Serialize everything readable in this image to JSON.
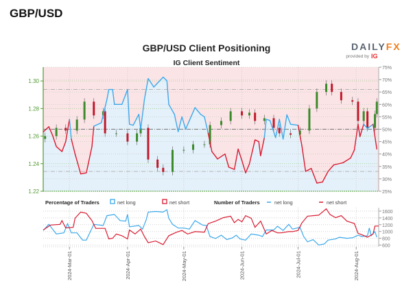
{
  "page_title": "GBP/USD",
  "logo": {
    "brand_a": "DAILY",
    "brand_b": "FX",
    "tagline": "provided by",
    "tagline_brand": "IG"
  },
  "chart_data": {
    "type": "candlestick+line",
    "title": "GBP/USD Client Positioning",
    "subtitle": "IG Client Sentiment",
    "x_range": [
      "2024-02-16",
      "2024-08-13"
    ],
    "x_ticks": [
      "2024-Mar-01",
      "2024-Apr-01",
      "2024-May-01",
      "2024-Jun-01",
      "2024-Jul-01",
      "2024-Aug-01"
    ],
    "x_tick_dates": [
      "2024-03-01",
      "2024-04-01",
      "2024-05-01",
      "2024-06-01",
      "2024-07-01",
      "2024-08-01"
    ],
    "price_axis": {
      "range": [
        1.22,
        1.31
      ],
      "ticks": [
        "1.22",
        "1.24",
        "1.26",
        "1.28",
        "1.30"
      ],
      "color": "#4e9a2e"
    },
    "percent_axis": {
      "range": [
        25,
        75
      ],
      "ticks": [
        "25%",
        "30%",
        "35%",
        "40%",
        "45%",
        "50%",
        "55%",
        "60%",
        "65%",
        "70%",
        "75%"
      ]
    },
    "reference_lines_percent": [
      33,
      50,
      66
    ],
    "price_close": [
      [
        "2024-02-17",
        1.26
      ],
      [
        "2024-02-23",
        1.266
      ],
      [
        "2024-02-28",
        1.264
      ],
      [
        "2024-03-05",
        1.272
      ],
      [
        "2024-03-09",
        1.285
      ],
      [
        "2024-03-14",
        1.275
      ],
      [
        "2024-03-19",
        1.278
      ],
      [
        "2024-03-20",
        1.262
      ],
      [
        "2024-03-26",
        1.262
      ],
      [
        "2024-04-01",
        1.256
      ],
      [
        "2024-04-06",
        1.262
      ],
      [
        "2024-04-08",
        1.266
      ],
      [
        "2024-04-12",
        1.243
      ],
      [
        "2024-04-17",
        1.237
      ],
      [
        "2024-04-20",
        1.234
      ],
      [
        "2024-04-25",
        1.25
      ],
      [
        "2024-05-01",
        1.25
      ],
      [
        "2024-05-06",
        1.254
      ],
      [
        "2024-05-12",
        1.254
      ],
      [
        "2024-05-15",
        1.268
      ],
      [
        "2024-05-21",
        1.271
      ],
      [
        "2024-05-26",
        1.278
      ],
      [
        "2024-06-01",
        1.275
      ],
      [
        "2024-06-05",
        1.277
      ],
      [
        "2024-06-08",
        1.271
      ],
      [
        "2024-06-13",
        1.273
      ],
      [
        "2024-06-18",
        1.266
      ],
      [
        "2024-06-21",
        1.262
      ],
      [
        "2024-06-27",
        1.261
      ],
      [
        "2024-07-02",
        1.264
      ],
      [
        "2024-07-07",
        1.28
      ],
      [
        "2024-07-11",
        1.292
      ],
      [
        "2024-07-16",
        1.298
      ],
      [
        "2024-07-19",
        1.292
      ],
      [
        "2024-07-24",
        1.286
      ],
      [
        "2024-07-30",
        1.285
      ],
      [
        "2024-08-02",
        1.271
      ],
      [
        "2024-08-05",
        1.278
      ],
      [
        "2024-08-07",
        1.266
      ],
      [
        "2024-08-11",
        1.276
      ],
      [
        "2024-08-12",
        1.285
      ]
    ],
    "net_long_percent": [
      [
        "2024-02-16",
        48.9
      ],
      [
        "2024-02-19",
        51
      ],
      [
        "2024-02-21",
        47.5
      ],
      [
        "2024-02-23",
        43
      ],
      [
        "2024-02-26",
        41
      ],
      [
        "2024-02-28",
        45
      ],
      [
        "2024-03-01",
        54
      ],
      [
        "2024-03-02",
        46
      ],
      [
        "2024-03-04",
        40
      ],
      [
        "2024-03-07",
        32
      ],
      [
        "2024-03-10",
        32.4
      ],
      [
        "2024-03-13",
        43
      ],
      [
        "2024-03-14",
        51.2
      ],
      [
        "2024-03-18",
        52.6
      ],
      [
        "2024-03-21",
        62
      ],
      [
        "2024-03-22",
        66
      ],
      [
        "2024-03-24",
        66
      ],
      [
        "2024-03-25",
        60
      ],
      [
        "2024-03-29",
        60
      ],
      [
        "2024-04-01",
        66
      ],
      [
        "2024-04-02",
        52
      ],
      [
        "2024-04-04",
        51.6
      ],
      [
        "2024-04-07",
        56
      ],
      [
        "2024-04-08",
        50
      ],
      [
        "2024-04-10",
        62
      ],
      [
        "2024-04-12",
        70.4
      ],
      [
        "2024-04-15",
        67
      ],
      [
        "2024-04-20",
        71
      ],
      [
        "2024-04-22",
        69.5
      ],
      [
        "2024-04-23",
        60
      ],
      [
        "2024-04-26",
        56
      ],
      [
        "2024-04-28",
        49
      ],
      [
        "2024-04-30",
        55
      ],
      [
        "2024-05-02",
        50
      ],
      [
        "2024-05-04",
        53.5
      ],
      [
        "2024-05-07",
        58.7
      ],
      [
        "2024-05-10",
        56
      ],
      [
        "2024-05-12",
        55
      ],
      [
        "2024-05-14",
        48.4
      ],
      [
        "2024-05-16",
        41
      ],
      [
        "2024-05-19",
        38
      ],
      [
        "2024-05-23",
        40
      ],
      [
        "2024-05-25",
        34.7
      ],
      [
        "2024-05-28",
        33.8
      ],
      [
        "2024-05-30",
        42
      ],
      [
        "2024-06-01",
        37.4
      ],
      [
        "2024-06-03",
        32.4
      ],
      [
        "2024-06-05",
        36
      ],
      [
        "2024-06-08",
        45.7
      ],
      [
        "2024-06-10",
        45
      ],
      [
        "2024-06-11",
        39.3
      ],
      [
        "2024-06-13",
        46.6
      ],
      [
        "2024-06-14",
        54
      ],
      [
        "2024-06-16",
        53.5
      ],
      [
        "2024-06-19",
        46.6
      ],
      [
        "2024-06-21",
        54
      ],
      [
        "2024-06-23",
        46
      ],
      [
        "2024-06-25",
        55.8
      ],
      [
        "2024-06-27",
        52
      ],
      [
        "2024-07-01",
        51.6
      ],
      [
        "2024-07-03",
        43.4
      ],
      [
        "2024-07-05",
        33
      ],
      [
        "2024-07-08",
        34.2
      ],
      [
        "2024-07-11",
        28.3
      ],
      [
        "2024-07-14",
        28.7
      ],
      [
        "2024-07-17",
        33
      ],
      [
        "2024-07-20",
        35.6
      ],
      [
        "2024-07-25",
        36.5
      ],
      [
        "2024-07-29",
        38.4
      ],
      [
        "2024-07-31",
        41.6
      ],
      [
        "2024-08-02",
        52
      ],
      [
        "2024-08-03",
        47
      ],
      [
        "2024-08-05",
        52
      ],
      [
        "2024-08-07",
        50.3
      ],
      [
        "2024-08-10",
        52
      ],
      [
        "2024-08-12",
        42
      ]
    ],
    "traders_panel": {
      "legend": {
        "pct_title": "Percentage of Traders",
        "pct_long": "net long",
        "pct_short": "net short",
        "num_title": "Number of Traders",
        "num_long": "net long",
        "num_short": "net short"
      },
      "y_range": [
        550,
        1700
      ],
      "y_ticks": [
        "600",
        "800",
        "1000",
        "1200",
        "1400",
        "1600"
      ],
      "series": [
        {
          "name": "net long",
          "color": "#3aa8ec",
          "values": [
            [
              "2024-02-16",
              1030
            ],
            [
              "2024-02-19",
              1210
            ],
            [
              "2024-02-23",
              925
            ],
            [
              "2024-02-27",
              960
            ],
            [
              "2024-02-29",
              1230
            ],
            [
              "2024-03-02",
              960
            ],
            [
              "2024-03-05",
              960
            ],
            [
              "2024-03-08",
              745
            ],
            [
              "2024-03-10",
              745
            ],
            [
              "2024-03-14",
              1210
            ],
            [
              "2024-03-19",
              1175
            ],
            [
              "2024-03-21",
              1465
            ],
            [
              "2024-03-25",
              1500
            ],
            [
              "2024-03-28",
              1320
            ],
            [
              "2024-03-31",
              1305
            ],
            [
              "2024-04-01",
              1500
            ],
            [
              "2024-04-02",
              1140
            ],
            [
              "2024-04-07",
              1175
            ],
            [
              "2024-04-09",
              1070
            ],
            [
              "2024-04-11",
              1355
            ],
            [
              "2024-04-12",
              1570
            ],
            [
              "2024-04-16",
              1590
            ],
            [
              "2024-04-20",
              1570
            ],
            [
              "2024-04-22",
              1640
            ],
            [
              "2024-04-23",
              1390
            ],
            [
              "2024-04-25",
              1210
            ],
            [
              "2024-04-28",
              1100
            ],
            [
              "2024-05-01",
              1100
            ],
            [
              "2024-05-04",
              1070
            ],
            [
              "2024-05-07",
              1320
            ],
            [
              "2024-05-11",
              1190
            ],
            [
              "2024-05-13",
              1175
            ],
            [
              "2024-05-15",
              850
            ],
            [
              "2024-05-18",
              795
            ],
            [
              "2024-05-21",
              890
            ],
            [
              "2024-05-24",
              760
            ],
            [
              "2024-05-27",
              815
            ],
            [
              "2024-05-29",
              890
            ],
            [
              "2024-05-31",
              780
            ],
            [
              "2024-06-03",
              745
            ],
            [
              "2024-06-06",
              925
            ],
            [
              "2024-06-10",
              890
            ],
            [
              "2024-06-12",
              850
            ],
            [
              "2024-06-14",
              1045
            ],
            [
              "2024-06-18",
              1045
            ],
            [
              "2024-06-20",
              1155
            ],
            [
              "2024-06-23",
              1030
            ],
            [
              "2024-06-26",
              1210
            ],
            [
              "2024-06-28",
              1070
            ],
            [
              "2024-07-02",
              1120
            ],
            [
              "2024-07-04",
              850
            ],
            [
              "2024-07-06",
              695
            ],
            [
              "2024-07-09",
              760
            ],
            [
              "2024-07-12",
              600
            ],
            [
              "2024-07-15",
              635
            ],
            [
              "2024-07-17",
              745
            ],
            [
              "2024-07-21",
              780
            ],
            [
              "2024-07-23",
              830
            ],
            [
              "2024-07-27",
              800
            ],
            [
              "2024-07-30",
              815
            ],
            [
              "2024-08-02",
              890
            ],
            [
              "2024-08-04",
              850
            ],
            [
              "2024-08-07",
              875
            ],
            [
              "2024-08-08",
              1100
            ],
            [
              "2024-08-09",
              875
            ],
            [
              "2024-08-11",
              995
            ],
            [
              "2024-08-12",
              830
            ]
          ]
        },
        {
          "name": "net short",
          "color": "#d9182e",
          "values": [
            [
              "2024-02-16",
              1045
            ],
            [
              "2024-02-20",
              1190
            ],
            [
              "2024-02-25",
              1210
            ],
            [
              "2024-02-26",
              1320
            ],
            [
              "2024-02-28",
              1105
            ],
            [
              "2024-03-03",
              1120
            ],
            [
              "2024-03-04",
              1390
            ],
            [
              "2024-03-07",
              1570
            ],
            [
              "2024-03-10",
              1535
            ],
            [
              "2024-03-13",
              1320
            ],
            [
              "2024-03-15",
              1090
            ],
            [
              "2024-03-20",
              1090
            ],
            [
              "2024-03-22",
              780
            ],
            [
              "2024-03-24",
              800
            ],
            [
              "2024-03-26",
              925
            ],
            [
              "2024-03-29",
              875
            ],
            [
              "2024-04-01",
              780
            ],
            [
              "2024-04-02",
              1045
            ],
            [
              "2024-04-05",
              925
            ],
            [
              "2024-04-08",
              1070
            ],
            [
              "2024-04-10",
              850
            ],
            [
              "2024-04-12",
              670
            ],
            [
              "2024-04-16",
              720
            ],
            [
              "2024-04-20",
              615
            ],
            [
              "2024-04-23",
              875
            ],
            [
              "2024-04-25",
              925
            ],
            [
              "2024-04-27",
              975
            ],
            [
              "2024-04-30",
              1030
            ],
            [
              "2024-05-03",
              925
            ],
            [
              "2024-05-07",
              995
            ],
            [
              "2024-05-12",
              980
            ],
            [
              "2024-05-14",
              1230
            ],
            [
              "2024-05-18",
              1305
            ],
            [
              "2024-05-22",
              1405
            ],
            [
              "2024-05-26",
              1450
            ],
            [
              "2024-05-28",
              1260
            ],
            [
              "2024-05-30",
              1355
            ],
            [
              "2024-06-01",
              1285
            ],
            [
              "2024-06-03",
              1465
            ],
            [
              "2024-06-06",
              1390
            ],
            [
              "2024-06-08",
              1120
            ],
            [
              "2024-06-11",
              1305
            ],
            [
              "2024-06-14",
              925
            ],
            [
              "2024-06-17",
              1030
            ],
            [
              "2024-06-20",
              960
            ],
            [
              "2024-06-22",
              960
            ],
            [
              "2024-06-26",
              995
            ],
            [
              "2024-06-28",
              995
            ],
            [
              "2024-07-01",
              1030
            ],
            [
              "2024-07-03",
              1250
            ],
            [
              "2024-07-06",
              1450
            ],
            [
              "2024-07-12",
              1480
            ],
            [
              "2024-07-16",
              1665
            ],
            [
              "2024-07-18",
              1500
            ],
            [
              "2024-07-21",
              1405
            ],
            [
              "2024-07-24",
              1465
            ],
            [
              "2024-07-27",
              1305
            ],
            [
              "2024-07-31",
              1235
            ],
            [
              "2024-08-02",
              945
            ],
            [
              "2024-08-04",
              905
            ],
            [
              "2024-08-07",
              830
            ],
            [
              "2024-08-10",
              925
            ],
            [
              "2024-08-11",
              1160
            ],
            [
              "2024-08-13",
              1160
            ]
          ]
        }
      ]
    },
    "colors": {
      "net_long": "#3aa8ec",
      "net_short": "#d9182e",
      "long_fill": "#e4f1fa",
      "short_fill": "#fbe4e6",
      "candle_up": "#3b8a2a",
      "candle_down": "#c2182a"
    }
  }
}
